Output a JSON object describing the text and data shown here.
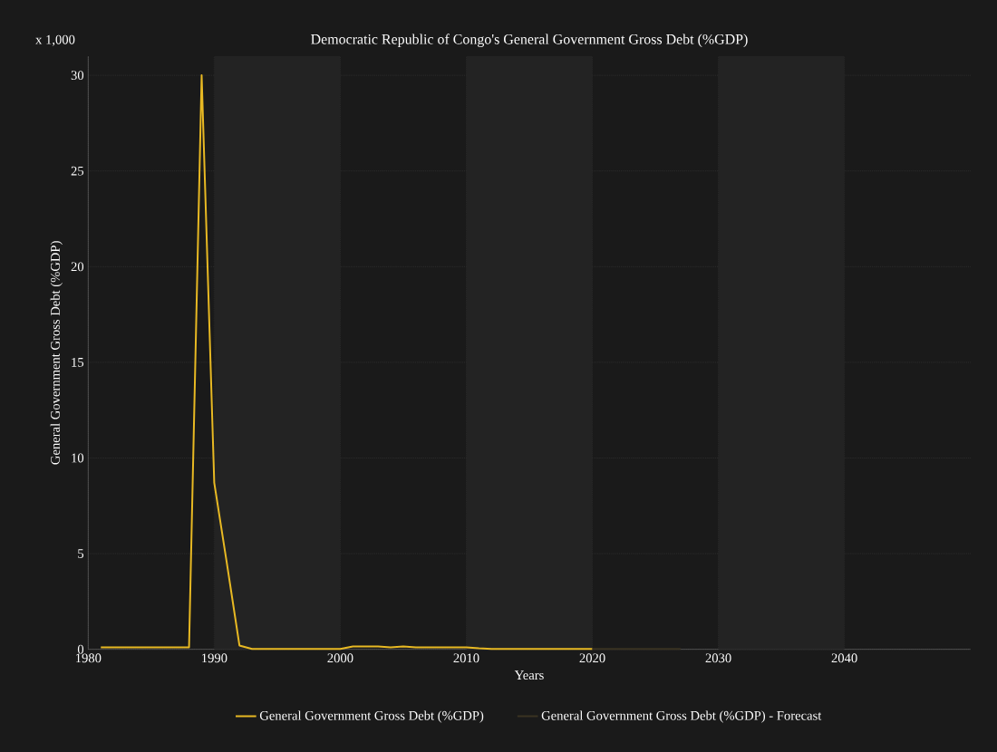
{
  "chart_data": {
    "type": "line",
    "title": "Democratic Republic of Congo's General Government Gross Debt (%GDP)",
    "xlabel": "Years",
    "ylabel": "General Government Gross Debt (%GDP)",
    "annotations": [
      "x 1,000"
    ],
    "series": [
      {
        "name": "General Government Gross Debt (%GDP)",
        "color": "#e8b923",
        "x": [
          1981,
          1982,
          1983,
          1984,
          1985,
          1986,
          1987,
          1988,
          1989,
          1990,
          1991,
          1992,
          1993,
          1994,
          1995,
          1996,
          1997,
          1998,
          1999,
          2000,
          2001,
          2002,
          2003,
          2004,
          2005,
          2006,
          2007,
          2008,
          2009,
          2010,
          2011,
          2012,
          2013,
          2014,
          2015,
          2016,
          2017,
          2018,
          2019,
          2020
        ],
        "values": [
          0.1,
          0.1,
          0.1,
          0.1,
          0.1,
          0.1,
          0.1,
          0.1,
          30,
          8.7,
          4.5,
          0.2,
          0.02,
          0.02,
          0.02,
          0.02,
          0.02,
          0.02,
          0.02,
          0.02,
          0.15,
          0.15,
          0.15,
          0.1,
          0.15,
          0.1,
          0.1,
          0.1,
          0.1,
          0.1,
          0.05,
          0.02,
          0.02,
          0.02,
          0.02,
          0.02,
          0.02,
          0.02,
          0.02,
          0.02
        ]
      },
      {
        "name": "General Government Gross Debt (%GDP) - Forecast",
        "color": "#3a3322",
        "x": [
          2020,
          2021,
          2022,
          2023,
          2024,
          2025,
          2026,
          2027
        ],
        "values": [
          0.02,
          0.02,
          0.02,
          0.02,
          0.02,
          0.02,
          0.02,
          0.02
        ]
      }
    ],
    "xlim": [
      1980,
      2050
    ],
    "xticks": [
      1980,
      1990,
      2000,
      2010,
      2020,
      2030,
      2040
    ],
    "ylim": [
      0,
      31
    ],
    "yticks": [
      0,
      5,
      10,
      15,
      20,
      25,
      30
    ],
    "bands": [
      {
        "axis": "x",
        "from": 1990,
        "to": 2000,
        "color": "#232323"
      },
      {
        "axis": "x",
        "from": 2010,
        "to": 2020,
        "color": "#232323"
      },
      {
        "axis": "x",
        "from": 2030,
        "to": 2040,
        "color": "#232323"
      }
    ],
    "grid": true,
    "legend": "bottom",
    "marker": "none",
    "line_style": "solid"
  }
}
